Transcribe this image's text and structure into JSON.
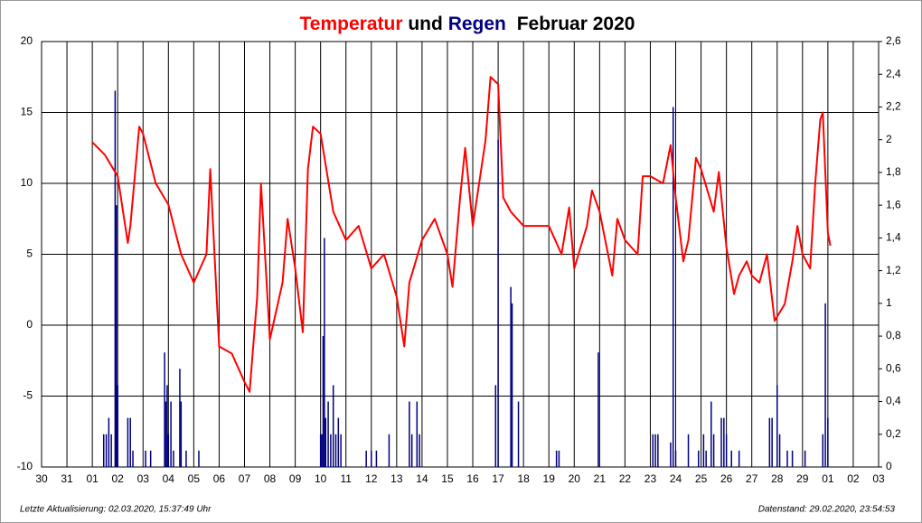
{
  "chart_data": {
    "type": "line",
    "title": "Februar 2020",
    "title_connector": "und",
    "footer_left": "Letzte Aktualisierung: 02.03.2020, 15:37:49 Uhr",
    "footer_right": "Datenstand: 29.02.2020, 23:54:53",
    "xlim": [
      -1,
      32
    ],
    "xticks": [
      {
        "value": -1,
        "label": "30"
      },
      {
        "value": 0,
        "label": "31"
      },
      {
        "value": 1,
        "label": "01"
      },
      {
        "value": 2,
        "label": "02"
      },
      {
        "value": 3,
        "label": "03"
      },
      {
        "value": 4,
        "label": "04"
      },
      {
        "value": 5,
        "label": "05"
      },
      {
        "value": 6,
        "label": "06"
      },
      {
        "value": 7,
        "label": "07"
      },
      {
        "value": 8,
        "label": "08"
      },
      {
        "value": 9,
        "label": "09"
      },
      10,
      11,
      12,
      13,
      14,
      15,
      16,
      17,
      18,
      19,
      20,
      21,
      22,
      23,
      24,
      25,
      26,
      27,
      28,
      29,
      {
        "value": 30,
        "label": "01"
      },
      {
        "value": 31,
        "label": "02"
      },
      {
        "value": 32,
        "label": "03"
      }
    ],
    "ylim": [
      -10,
      20
    ],
    "yticks": [
      -10,
      -5,
      0,
      5,
      10,
      15,
      20
    ],
    "y2lim": [
      0,
      2.6
    ],
    "y2ticks": [
      0,
      {
        "value": 0.2,
        "label": "0,2"
      },
      {
        "value": 0.4,
        "label": "0,4"
      },
      {
        "value": 0.6,
        "label": "0,6"
      },
      {
        "value": 0.8,
        "label": "0,8"
      },
      1,
      {
        "value": 1.2,
        "label": "1,2"
      },
      {
        "value": 1.4,
        "label": "1,4"
      },
      {
        "value": 1.6,
        "label": "1,6"
      },
      {
        "value": 1.8,
        "label": "1,8"
      },
      2,
      {
        "value": 2.2,
        "label": "2,2"
      },
      {
        "value": 2.4,
        "label": "2,4"
      },
      {
        "value": 2.6,
        "label": "2,6"
      }
    ],
    "grid": true,
    "series": [
      {
        "name": "Temperatur",
        "color": "#ff0000",
        "x": [
          1.0,
          1.5,
          2.0,
          2.4,
          2.5,
          2.85,
          3.0,
          3.5,
          4.0,
          4.5,
          5.0,
          5.5,
          5.65,
          6.0,
          6.5,
          7.0,
          7.2,
          7.5,
          7.65,
          8.0,
          8.5,
          8.7,
          9.0,
          9.3,
          9.5,
          9.7,
          10.0,
          10.5,
          11.0,
          11.5,
          12.0,
          12.5,
          13.0,
          13.3,
          13.5,
          14.0,
          14.5,
          15.0,
          15.2,
          15.5,
          15.7,
          16.0,
          16.5,
          16.7,
          17.0,
          17.2,
          17.5,
          18.0,
          18.5,
          19.0,
          19.5,
          19.8,
          20.0,
          20.5,
          20.7,
          21.0,
          21.5,
          21.7,
          22.0,
          22.5,
          22.7,
          23.0,
          23.5,
          23.8,
          24.0,
          24.3,
          24.5,
          24.8,
          25.0,
          25.5,
          25.7,
          26.0,
          26.3,
          26.5,
          26.8,
          27.0,
          27.3,
          27.6,
          27.9,
          28.3,
          28.6,
          28.8,
          29.0,
          29.3,
          29.5,
          29.7,
          29.8,
          30.0,
          30.1
        ],
        "values": [
          12.9,
          12.0,
          10.5,
          5.8,
          7.0,
          14.0,
          13.5,
          10.0,
          8.5,
          5.0,
          3.0,
          5.0,
          11.0,
          -1.5,
          -2.0,
          -4.0,
          -4.7,
          2.0,
          10.0,
          -1.0,
          3.0,
          7.5,
          4.0,
          -0.5,
          11.0,
          14.0,
          13.5,
          8.0,
          6.0,
          7.0,
          4.0,
          5.0,
          2.0,
          -1.5,
          3.0,
          6.0,
          7.5,
          5.0,
          2.7,
          9.0,
          12.5,
          7.0,
          13.0,
          17.5,
          17.0,
          9.0,
          8.0,
          7.0,
          7.0,
          7.0,
          5.0,
          8.3,
          4.0,
          7.0,
          9.5,
          8.0,
          3.5,
          7.5,
          6.0,
          5.0,
          10.5,
          10.5,
          10.0,
          12.7,
          9.0,
          4.5,
          6.0,
          11.8,
          11.0,
          8.0,
          10.8,
          5.5,
          2.2,
          3.5,
          4.5,
          3.5,
          3.0,
          5.0,
          0.3,
          1.5,
          4.5,
          7.0,
          5.0,
          4.0,
          10.0,
          14.5,
          15.0,
          6.5,
          5.6
        ]
      },
      {
        "name": "Regen",
        "color": "#000080",
        "type": "bar",
        "axis": "y2",
        "x": [
          1.45,
          1.55,
          1.65,
          1.75,
          1.9,
          1.95,
          2.0,
          2.4,
          2.5,
          2.6,
          3.1,
          3.3,
          3.85,
          3.9,
          3.95,
          4.0,
          4.1,
          4.2,
          4.45,
          4.5,
          4.7,
          5.2,
          10.0,
          10.05,
          10.1,
          10.15,
          10.2,
          10.3,
          10.4,
          10.5,
          10.6,
          10.7,
          10.8,
          11.8,
          12.0,
          12.2,
          12.7,
          13.5,
          13.6,
          13.8,
          13.9,
          16.9,
          17.0,
          17.5,
          17.55,
          17.8,
          19.3,
          19.4,
          20.95,
          23.1,
          23.2,
          23.3,
          23.8,
          23.9,
          24.0,
          24.5,
          24.9,
          25.1,
          25.2,
          25.4,
          25.5,
          25.8,
          25.9,
          26.0,
          26.2,
          26.5,
          27.7,
          27.8,
          28.0,
          28.1,
          28.4,
          28.6,
          29.1,
          29.8,
          29.9,
          30.0
        ],
        "values": [
          0.2,
          0.2,
          0.3,
          0.2,
          2.3,
          1.6,
          0.5,
          0.3,
          0.3,
          0.1,
          0.1,
          0.1,
          0.7,
          0.4,
          0.5,
          0.2,
          0.4,
          0.1,
          0.6,
          0.4,
          0.1,
          0.1,
          0.2,
          0.2,
          0.8,
          1.4,
          0.3,
          0.4,
          0.2,
          0.5,
          0.2,
          0.3,
          0.2,
          0.1,
          0.1,
          0.1,
          0.2,
          0.4,
          0.2,
          0.4,
          0.2,
          0.5,
          2.0,
          1.1,
          1.0,
          0.4,
          0.1,
          0.1,
          0.7,
          0.2,
          0.2,
          0.2,
          0.15,
          2.2,
          0.1,
          0.2,
          0.1,
          0.2,
          0.1,
          0.4,
          0.2,
          0.3,
          0.3,
          0.2,
          0.1,
          0.1,
          0.3,
          0.3,
          0.5,
          0.2,
          0.1,
          0.1,
          0.1,
          0.2,
          1.0,
          0.3
        ]
      }
    ]
  }
}
